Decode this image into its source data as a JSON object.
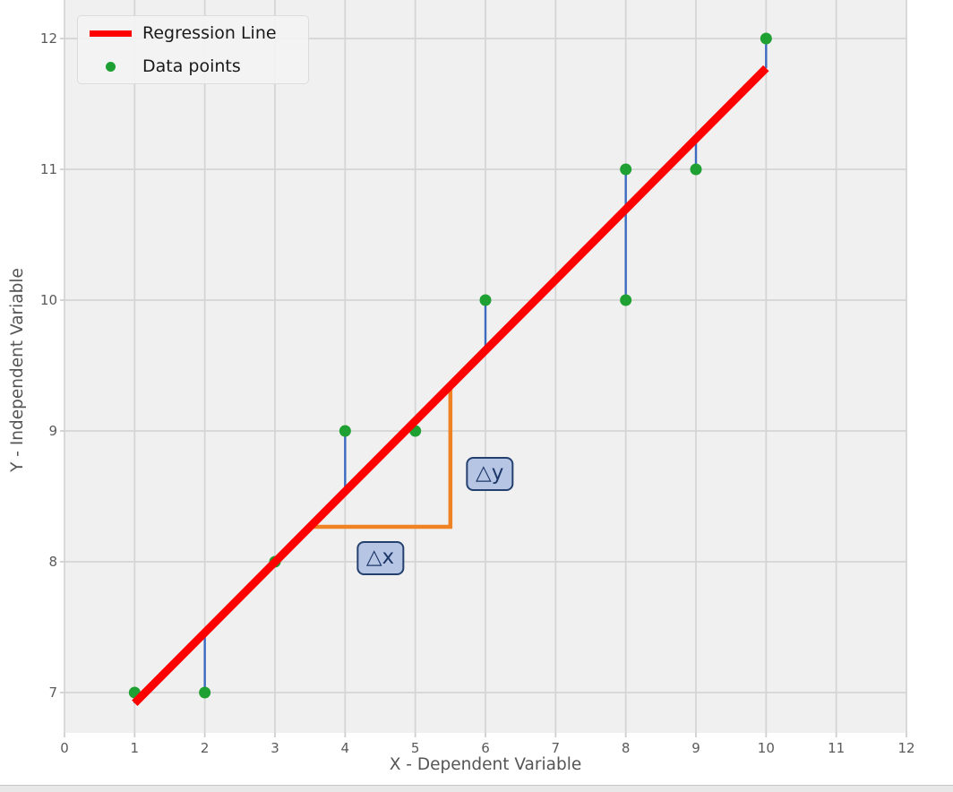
{
  "chart_data": {
    "type": "scatter",
    "title": "",
    "xlabel": "X - Dependent Variable",
    "ylabel": "Y - Independent Variable",
    "xlim": [
      0,
      12
    ],
    "ylim": [
      6.69,
      12.3
    ],
    "x_ticks": [
      0,
      1,
      2,
      3,
      4,
      5,
      6,
      7,
      8,
      9,
      10,
      11,
      12
    ],
    "y_ticks": [
      7,
      8,
      9,
      10,
      11,
      12
    ],
    "grid": true,
    "legend_position": "upper left",
    "series": [
      {
        "name": "Regression Line",
        "type": "line",
        "color": "#ff0000",
        "slope": 0.5394,
        "intercept": 6.3796,
        "x_range": [
          1,
          10
        ]
      },
      {
        "name": "Data points",
        "type": "scatter",
        "color": "#1fa032",
        "points": [
          [
            1,
            7
          ],
          [
            2,
            7
          ],
          [
            3,
            8
          ],
          [
            4,
            9
          ],
          [
            5,
            9
          ],
          [
            6,
            10
          ],
          [
            8,
            10
          ],
          [
            8,
            11
          ],
          [
            9,
            11
          ],
          [
            10,
            12
          ]
        ]
      }
    ],
    "residuals": {
      "color": "#3b6abf",
      "description": "vertical segments from each data point to the regression line"
    },
    "slope_triangle": {
      "color": "#ef8222",
      "x_start": 3.5,
      "x_end": 5.5,
      "labels": [
        {
          "text": "△x",
          "cx": 4.5,
          "cy": 8.03
        },
        {
          "text": "△y",
          "cx": 6.06,
          "cy": 8.67
        }
      ]
    },
    "legend": [
      {
        "label": "Regression Line",
        "marker": "line",
        "color": "#ff0000"
      },
      {
        "label": "Data points",
        "marker": "dot",
        "color": "#1fa032"
      }
    ],
    "colors": {
      "figure_bg": "#ffffff",
      "plot_bg": "#f0f0f0",
      "grid": "#d5d5d5",
      "tick_text": "#5a5a5a",
      "label_text": "#555555",
      "legend_text": "#1a1a1a",
      "delta_box_fill": "#b7c5e5",
      "delta_box_border": "#23406e"
    }
  }
}
